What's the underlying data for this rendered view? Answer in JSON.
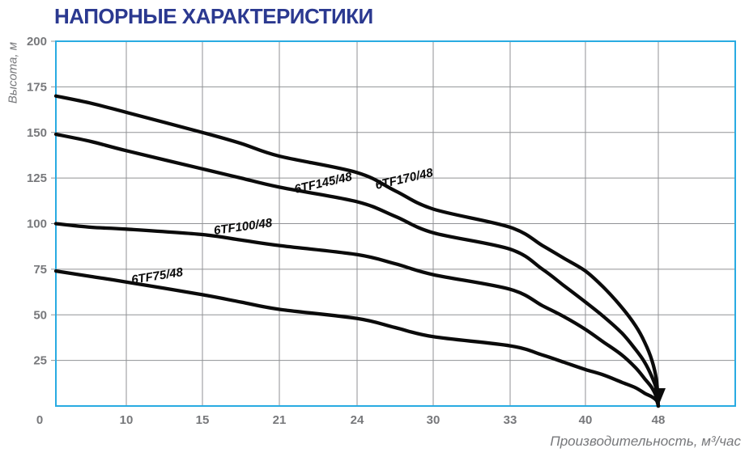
{
  "chart_data": {
    "type": "line",
    "title": "НАПОРНЫЕ ХАРАКТЕРИСТИКИ",
    "xlabel": "Производительность, м³/час",
    "ylabel": "Высота, м",
    "x_ticks": [
      0,
      10,
      15,
      21,
      24,
      30,
      33,
      40,
      48
    ],
    "x_scale_note": "tick marks evenly spaced although values are non-linear",
    "y_ticks": [
      0,
      25,
      50,
      75,
      100,
      125,
      150,
      175,
      200
    ],
    "ylim": [
      0,
      200
    ],
    "xlim": [
      0,
      48
    ],
    "grid": true,
    "legend": "labels placed directly on curves",
    "series": [
      {
        "name": "6TF75/48",
        "points": [
          [
            0,
            74
          ],
          [
            5,
            71
          ],
          [
            10,
            68
          ],
          [
            15,
            61
          ],
          [
            18,
            57
          ],
          [
            21,
            53
          ],
          [
            24,
            48
          ],
          [
            27,
            43
          ],
          [
            30,
            38
          ],
          [
            33,
            33
          ],
          [
            36,
            28
          ],
          [
            38,
            24
          ],
          [
            40,
            20
          ],
          [
            42,
            17
          ],
          [
            44,
            13
          ],
          [
            45.5,
            10
          ],
          [
            46.5,
            7
          ],
          [
            47.3,
            5
          ],
          [
            47.8,
            3
          ],
          [
            48,
            0
          ]
        ]
      },
      {
        "name": "6TF100/48",
        "points": [
          [
            0,
            100
          ],
          [
            5,
            98
          ],
          [
            10,
            97
          ],
          [
            15,
            94
          ],
          [
            18,
            91
          ],
          [
            21,
            88
          ],
          [
            24,
            83
          ],
          [
            27,
            78
          ],
          [
            30,
            72
          ],
          [
            33,
            64
          ],
          [
            36,
            55
          ],
          [
            38,
            49
          ],
          [
            40,
            42
          ],
          [
            42,
            35
          ],
          [
            44,
            28
          ],
          [
            45.5,
            21
          ],
          [
            46.5,
            15
          ],
          [
            47.3,
            10
          ],
          [
            47.8,
            5
          ],
          [
            48,
            0
          ]
        ]
      },
      {
        "name": "6TF145/48",
        "points": [
          [
            0,
            149
          ],
          [
            5,
            145
          ],
          [
            10,
            140
          ],
          [
            15,
            130
          ],
          [
            18,
            125
          ],
          [
            21,
            120
          ],
          [
            24,
            112
          ],
          [
            27,
            104
          ],
          [
            30,
            95
          ],
          [
            33,
            86
          ],
          [
            36,
            75
          ],
          [
            38,
            66
          ],
          [
            40,
            57
          ],
          [
            42,
            49
          ],
          [
            44,
            40
          ],
          [
            45.5,
            31
          ],
          [
            46.5,
            24
          ],
          [
            47.3,
            16
          ],
          [
            47.8,
            9
          ],
          [
            48,
            0
          ]
        ]
      },
      {
        "name": "6TF170/48",
        "points": [
          [
            0,
            170
          ],
          [
            5,
            166
          ],
          [
            10,
            161
          ],
          [
            15,
            150
          ],
          [
            18,
            144
          ],
          [
            21,
            137
          ],
          [
            24,
            128
          ],
          [
            27,
            118
          ],
          [
            30,
            108
          ],
          [
            33,
            98
          ],
          [
            36,
            88
          ],
          [
            38,
            81
          ],
          [
            40,
            74
          ],
          [
            42,
            65
          ],
          [
            44,
            54
          ],
          [
            45.5,
            44
          ],
          [
            46.5,
            35
          ],
          [
            47.3,
            25
          ],
          [
            47.8,
            14
          ],
          [
            48,
            0
          ]
        ]
      }
    ],
    "colors": {
      "title": "#2B3990",
      "axis_text": "#77787B",
      "plot_border": "#29ABE2",
      "gridline": "#909295",
      "curve": "#0B0B0B",
      "background": "#FFFFFF"
    }
  }
}
